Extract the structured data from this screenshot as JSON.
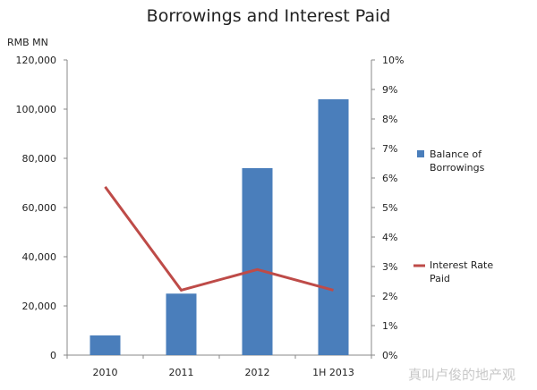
{
  "chart_data": {
    "type": "bar+line",
    "title": "Borrowings and Interest Paid",
    "ylabel": "RMB MN",
    "categories": [
      "2010",
      "2011",
      "2012",
      "1H 2013"
    ],
    "y_left": {
      "lim": [
        0,
        120000
      ],
      "ticks": [
        "0",
        "20,000",
        "40,000",
        "60,000",
        "80,000",
        "100,000",
        "120,000"
      ],
      "tick_values": [
        0,
        20000,
        40000,
        60000,
        80000,
        100000,
        120000
      ]
    },
    "y_right": {
      "lim": [
        0,
        10
      ],
      "unit": "%",
      "ticks": [
        "0%",
        "1%",
        "2%",
        "3%",
        "4%",
        "5%",
        "6%",
        "7%",
        "8%",
        "9%",
        "10%"
      ],
      "tick_values": [
        0,
        1,
        2,
        3,
        4,
        5,
        6,
        7,
        8,
        9,
        10
      ]
    },
    "series": [
      {
        "name": "Balance of Borrowings",
        "type": "bar",
        "axis": "left",
        "values": [
          8000,
          25000,
          76000,
          104000
        ],
        "color": "#4a7ebb"
      },
      {
        "name": "Interest Rate Paid",
        "type": "line",
        "axis": "right",
        "values": [
          5.7,
          2.2,
          2.9,
          2.2
        ],
        "color": "#be4b48"
      }
    ],
    "legend": {
      "placement": "right",
      "entries": [
        "Balance of Borrowings",
        "Interest Rate Paid"
      ]
    },
    "grid": false
  },
  "watermark": "真叫卢俊的地产观"
}
